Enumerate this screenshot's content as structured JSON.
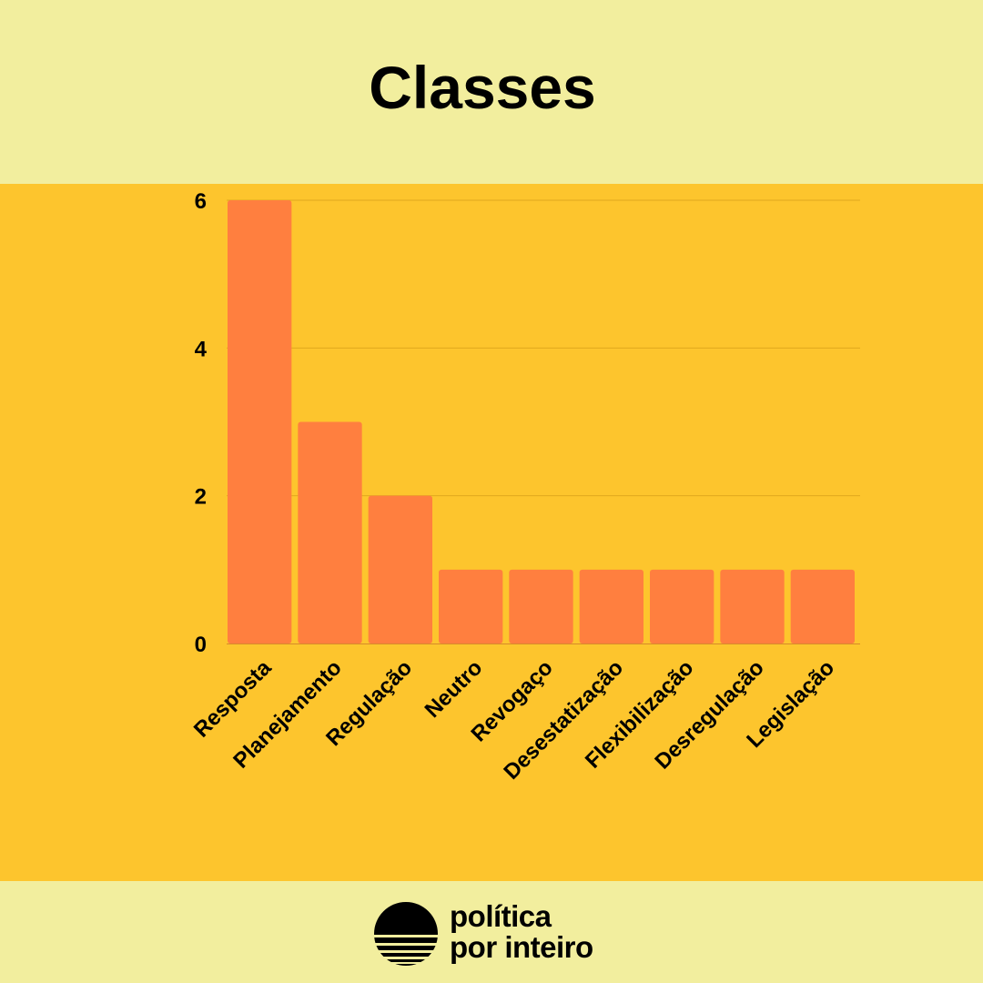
{
  "chart_data": {
    "type": "bar",
    "title": "Classes",
    "categories": [
      "Resposta",
      "Planejamento",
      "Regulação",
      "Neutro",
      "Revogaço",
      "Desestatização",
      "Flexibilização",
      "Desregulação",
      "Legislação"
    ],
    "values": [
      6,
      3,
      2,
      1,
      1,
      1,
      1,
      1,
      1
    ],
    "ylim": [
      0,
      6
    ],
    "yticks": [
      "0",
      "2",
      "4",
      "6"
    ],
    "xlabel": "",
    "ylabel": "",
    "grid": true,
    "bar_color": "#ff7f3f",
    "grid_color": "#e0a81f"
  },
  "colors": {
    "header_bg": "#f2ee9e",
    "panel_bg": "#fdc52d",
    "footer_bg": "#f2ee9e"
  },
  "brand": {
    "line1": "política",
    "line2": "por inteiro",
    "icon": "sun-horizon-logo-icon"
  }
}
